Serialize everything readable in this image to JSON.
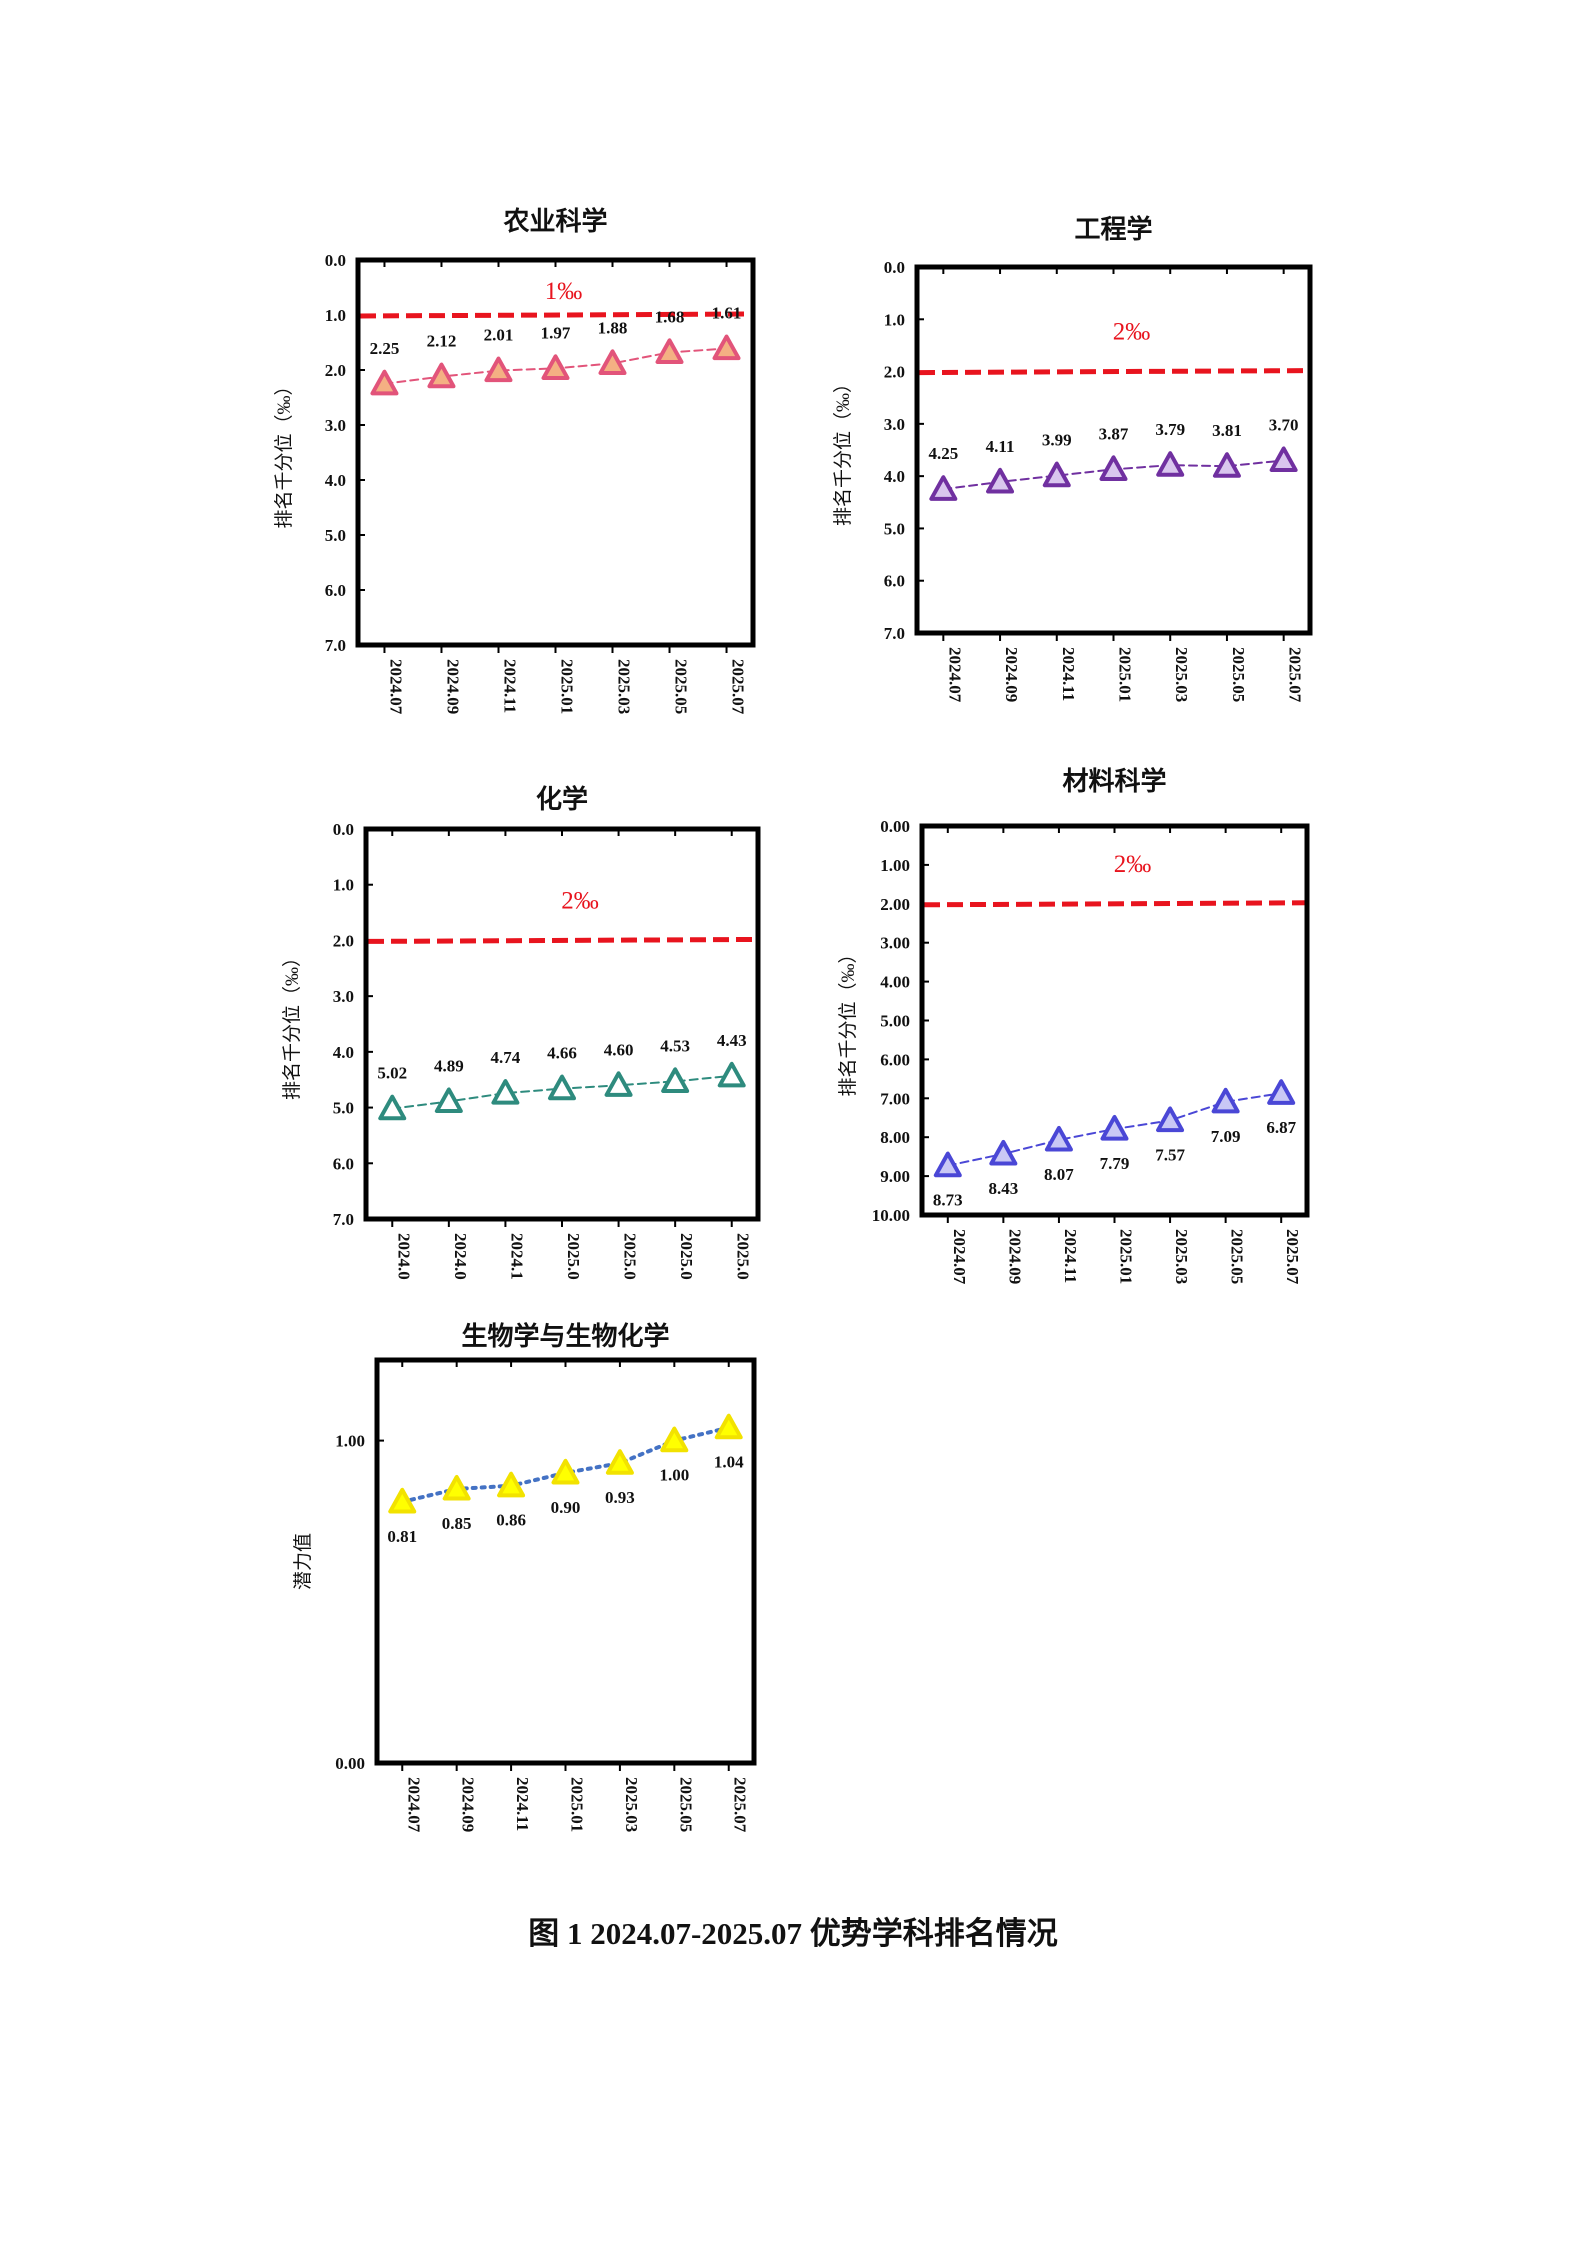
{
  "figure_caption": "图 1 2024.07-2025.07 优势学科排名情况",
  "chart_data": [
    {
      "type": "line",
      "title": "农业科学",
      "ylabel": "排名千分位（‰）",
      "ylim": [
        0,
        7
      ],
      "y_reversed": true,
      "y_ticks": [
        "0.0",
        "1.0",
        "2.0",
        "3.0",
        "4.0",
        "5.0",
        "6.0",
        "7.0"
      ],
      "categories": [
        "2024.07",
        "2024.09",
        "2024.11",
        "2025.01",
        "2025.03",
        "2025.05",
        "2025.07"
      ],
      "values": [
        2.25,
        2.12,
        2.01,
        1.97,
        1.88,
        1.68,
        1.61
      ],
      "data_labels": [
        "2.25",
        "2.12",
        "2.01",
        "1.97",
        "1.88",
        "1.68",
        "1.61"
      ],
      "reference_line": {
        "value": 1,
        "label": "1‰",
        "color": "#e8141e"
      },
      "color": "#e2547a",
      "fill": "#f4b083",
      "dotted": false
    },
    {
      "type": "line",
      "title": "工程学",
      "ylabel": "排名千分位（‰）",
      "ylim": [
        0,
        7
      ],
      "y_reversed": true,
      "y_ticks": [
        "0.0",
        "1.0",
        "2.0",
        "3.0",
        "4.0",
        "5.0",
        "6.0",
        "7.0"
      ],
      "categories": [
        "2024.07",
        "2024.09",
        "2024.11",
        "2025.01",
        "2025.03",
        "2025.05",
        "2025.07"
      ],
      "values": [
        4.25,
        4.11,
        3.99,
        3.87,
        3.79,
        3.81,
        3.7
      ],
      "data_labels": [
        "4.25",
        "4.11",
        "3.99",
        "3.87",
        "3.79",
        "3.81",
        "3.70"
      ],
      "reference_line": {
        "value": 2,
        "label": "2‰",
        "color": "#e8141e"
      },
      "color": "#7030a0",
      "fill": "#d9c6ee",
      "dotted": false
    },
    {
      "type": "line",
      "title": "化学",
      "ylabel": "排名千分位（‰）",
      "ylim": [
        0,
        7
      ],
      "y_reversed": true,
      "y_ticks": [
        "0.0",
        "1.0",
        "2.0",
        "3.0",
        "4.0",
        "5.0",
        "6.0",
        "7.0"
      ],
      "categories": [
        "2024.0",
        "2024.0",
        "2024.1",
        "2025.0",
        "2025.0",
        "2025.0",
        "2025.0"
      ],
      "values": [
        5.02,
        4.89,
        4.74,
        4.66,
        4.6,
        4.53,
        4.43
      ],
      "data_labels": [
        "5.02",
        "4.89",
        "4.74",
        "4.66",
        "4.60",
        "4.53",
        "4.43"
      ],
      "reference_line": {
        "value": 2,
        "label": "2‰",
        "color": "#e8141e"
      },
      "color": "#2e8b7e",
      "fill": "#ffffff",
      "dotted": false
    },
    {
      "type": "line",
      "title": "材料科学",
      "ylabel": "排名千分位（‰）",
      "ylim": [
        0,
        10
      ],
      "y_reversed": true,
      "y_ticks": [
        "0.00",
        "1.00",
        "2.00",
        "3.00",
        "4.00",
        "5.00",
        "6.00",
        "7.00",
        "8.00",
        "9.00",
        "10.00"
      ],
      "categories": [
        "2024.07",
        "2024.09",
        "2024.11",
        "2025.01",
        "2025.03",
        "2025.05",
        "2025.07"
      ],
      "values": [
        8.73,
        8.43,
        8.07,
        7.79,
        7.57,
        7.09,
        6.87
      ],
      "data_labels": [
        "8.73",
        "8.43",
        "8.07",
        "7.79",
        "7.57",
        "7.09",
        "6.87"
      ],
      "reference_line": {
        "value": 2,
        "label": "2‰",
        "color": "#e8141e"
      },
      "color": "#4a47d6",
      "fill": "#c9c8f5",
      "dotted": false
    },
    {
      "type": "line",
      "title": "生物学与生物化学",
      "ylabel": "潜力值",
      "ylim": [
        0,
        1.25
      ],
      "y_reversed": false,
      "y_ticks": [
        "0.00",
        "1.00"
      ],
      "y_tick_values": [
        0,
        1
      ],
      "categories": [
        "2024.07",
        "2024.09",
        "2024.11",
        "2025.01",
        "2025.03",
        "2025.05",
        "2025.07"
      ],
      "values": [
        0.81,
        0.85,
        0.86,
        0.9,
        0.93,
        1.0,
        1.04
      ],
      "data_labels": [
        "0.81",
        "0.85",
        "0.86",
        "0.90",
        "0.93",
        "1.00",
        "1.04"
      ],
      "color": "#4472c4",
      "fill": "#ffff00",
      "marker_stroke": "#f2e200",
      "dotted": true
    }
  ]
}
